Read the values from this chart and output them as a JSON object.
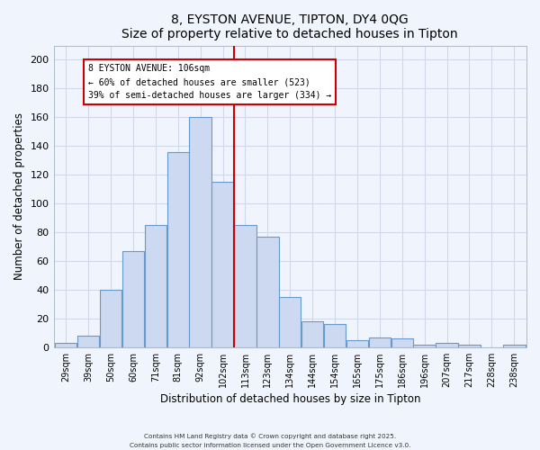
{
  "title": "8, EYSTON AVENUE, TIPTON, DY4 0QG",
  "subtitle": "Size of property relative to detached houses in Tipton",
  "xlabel": "Distribution of detached houses by size in Tipton",
  "ylabel": "Number of detached properties",
  "bar_labels": [
    "29sqm",
    "39sqm",
    "50sqm",
    "60sqm",
    "71sqm",
    "81sqm",
    "92sqm",
    "102sqm",
    "113sqm",
    "123sqm",
    "134sqm",
    "144sqm",
    "154sqm",
    "165sqm",
    "175sqm",
    "186sqm",
    "196sqm",
    "207sqm",
    "217sqm",
    "228sqm",
    "238sqm"
  ],
  "bar_values": [
    3,
    8,
    40,
    67,
    85,
    136,
    160,
    115,
    85,
    77,
    35,
    18,
    16,
    5,
    7,
    6,
    2,
    3,
    2,
    0,
    2
  ],
  "bar_color": "#ccd9f0",
  "bar_edge_color": "#6699cc",
  "ylim": [
    0,
    210
  ],
  "yticks": [
    0,
    20,
    40,
    60,
    80,
    100,
    120,
    140,
    160,
    180,
    200
  ],
  "vline_bin_index": 7,
  "annotation_line1": "8 EYSTON AVENUE: 106sqm",
  "annotation_line2": "← 60% of detached houses are smaller (523)",
  "annotation_line3": "39% of semi-detached houses are larger (334) →",
  "annotation_box_color": "#ffffff",
  "annotation_box_edge": "#cc0000",
  "vline_color": "#cc0000",
  "footer1": "Contains HM Land Registry data © Crown copyright and database right 2025.",
  "footer2": "Contains public sector information licensed under the Open Government Licence v3.0.",
  "background_color": "#f0f4fc",
  "grid_color": "#d0d8ec",
  "spine_color": "#aabbcc"
}
